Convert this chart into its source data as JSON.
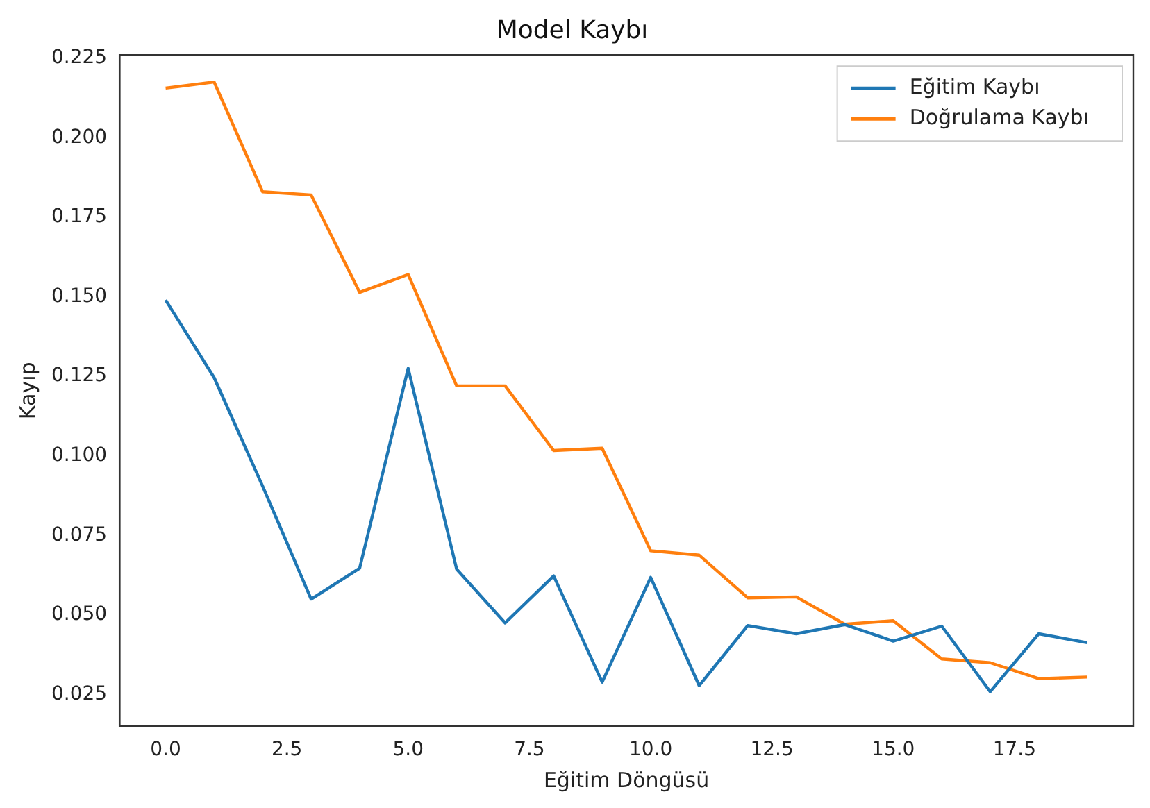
{
  "chart_data": {
    "type": "line",
    "title": "Model Kaybı",
    "xlabel": "Eğitim Döngüsü",
    "ylabel": "Kayıp",
    "x": [
      0,
      1,
      2,
      3,
      4,
      5,
      6,
      7,
      8,
      9,
      10,
      11,
      12,
      13,
      14,
      15,
      16,
      17,
      18,
      19
    ],
    "series": [
      {
        "name": "Eğitim Kaybı",
        "color": "#1f77b4",
        "values": [
          0.149,
          0.1246,
          0.0905,
          0.055,
          0.0647,
          0.1275,
          0.0644,
          0.0475,
          0.0623,
          0.0289,
          0.0618,
          0.0278,
          0.0467,
          0.0441,
          0.047,
          0.0418,
          0.0465,
          0.0259,
          0.0441,
          0.0413
        ]
      },
      {
        "name": "Doğrulama Kaybı",
        "color": "#ff7f0e",
        "values": [
          0.2156,
          0.2175,
          0.183,
          0.182,
          0.1514,
          0.157,
          0.122,
          0.122,
          0.1017,
          0.1024,
          0.0702,
          0.0688,
          0.0554,
          0.0557,
          0.0471,
          0.0482,
          0.0362,
          0.035,
          0.03,
          0.0305
        ]
      }
    ],
    "xlim": [
      -0.95,
      19.95
    ],
    "ylim": [
      0.015,
      0.226
    ],
    "xticks": [
      {
        "value": 0,
        "label": "0.0"
      },
      {
        "value": 2.5,
        "label": "2.5"
      },
      {
        "value": 5,
        "label": "5.0"
      },
      {
        "value": 7.5,
        "label": "7.5"
      },
      {
        "value": 10,
        "label": "10.0"
      },
      {
        "value": 12.5,
        "label": "12.5"
      },
      {
        "value": 15,
        "label": "15.0"
      },
      {
        "value": 17.5,
        "label": "17.5"
      }
    ],
    "yticks": [
      {
        "value": 0.025,
        "label": "0.025"
      },
      {
        "value": 0.05,
        "label": "0.050"
      },
      {
        "value": 0.075,
        "label": "0.075"
      },
      {
        "value": 0.1,
        "label": "0.100"
      },
      {
        "value": 0.125,
        "label": "0.125"
      },
      {
        "value": 0.15,
        "label": "0.150"
      },
      {
        "value": 0.175,
        "label": "0.175"
      },
      {
        "value": 0.2,
        "label": "0.200"
      },
      {
        "value": 0.225,
        "label": "0.225"
      }
    ],
    "grid": false,
    "legend": "top right",
    "marker": "none",
    "line_style": "solid"
  }
}
